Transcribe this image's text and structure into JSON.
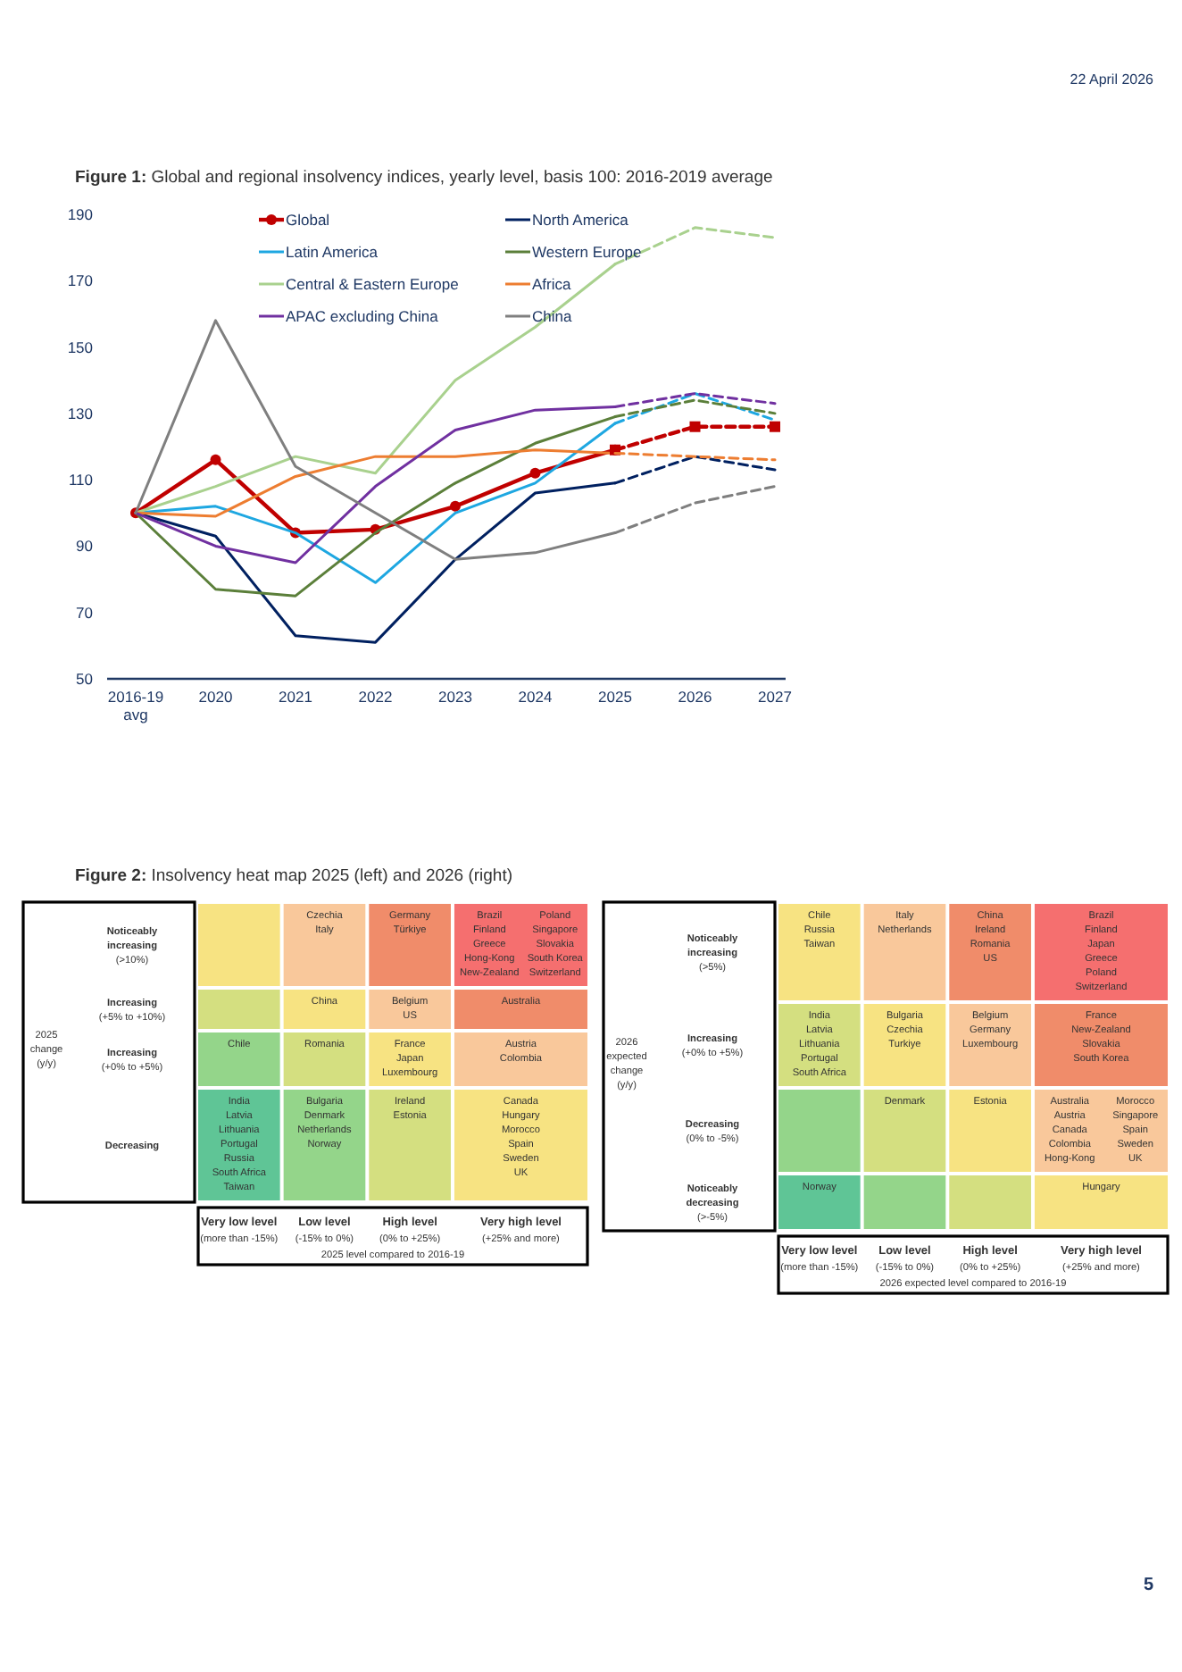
{
  "chart_data": [
    {
      "type": "line",
      "title": "Figure 1: Global and regional insolvency indices, yearly level, basis 100: 2016-2019 average",
      "annotations": [
        "22 April 2026",
        "5"
      ],
      "categories": [
        "2016-19 avg",
        "2020",
        "2021",
        "2022",
        "2023",
        "2024",
        "2025",
        "2026",
        "2027"
      ],
      "ylim": [
        50,
        190
      ],
      "yticks": [
        50,
        70,
        90,
        110,
        130,
        150,
        170,
        190
      ],
      "grid": false,
      "legend": "top",
      "line_style": "solid",
      "marker": "none",
      "series": [
        {
          "name": "Global",
          "color": "#c00000",
          "marker": "circle",
          "values": [
            100,
            116,
            94,
            95,
            102,
            112,
            119,
            null,
            null
          ]
        },
        {
          "name": "North America",
          "color": "#002060",
          "values": [
            100,
            93,
            63,
            61,
            86,
            106,
            109,
            null,
            null
          ]
        },
        {
          "name": "Latin America",
          "color": "#1ea7e1",
          "values": [
            100,
            102,
            94,
            79,
            100,
            109,
            127,
            null,
            null
          ]
        },
        {
          "name": "Western Europe",
          "color": "#5b7f3a",
          "values": [
            100,
            77,
            75,
            94,
            109,
            121,
            129,
            null,
            null
          ]
        },
        {
          "name": "Central & Eastern Europe",
          "color": "#a9d18e",
          "values": [
            100,
            108,
            117,
            112,
            140,
            156,
            175,
            null,
            null
          ]
        },
        {
          "name": "Africa",
          "color": "#ed7d31",
          "values": [
            100,
            99,
            111,
            117,
            117,
            119,
            118,
            null,
            null
          ]
        },
        {
          "name": "APAC excluding China",
          "color": "#7030a0",
          "values": [
            100,
            90,
            85,
            108,
            125,
            131,
            132,
            null,
            null
          ]
        },
        {
          "name": "China",
          "color": "#7f7f7f",
          "values": [
            100,
            158,
            114,
            100,
            86,
            88,
            94,
            null,
            null
          ]
        },
        {
          "color": "#c00000",
          "marker": "square",
          "line_style": "dashed",
          "values": [
            null,
            null,
            null,
            null,
            null,
            null,
            119,
            126,
            126
          ]
        },
        {
          "color": "#002060",
          "line_style": "dashed",
          "values": [
            null,
            null,
            null,
            null,
            null,
            null,
            109,
            117,
            113
          ]
        },
        {
          "color": "#1ea7e1",
          "line_style": "dashed",
          "values": [
            null,
            null,
            null,
            null,
            null,
            null,
            127,
            136,
            128
          ]
        },
        {
          "color": "#5b7f3a",
          "line_style": "dashed",
          "values": [
            null,
            null,
            null,
            null,
            null,
            null,
            129,
            134,
            130
          ]
        },
        {
          "color": "#a9d18e",
          "line_style": "dashed",
          "values": [
            null,
            null,
            null,
            null,
            null,
            null,
            175,
            186,
            183
          ]
        },
        {
          "color": "#ed7d31",
          "line_style": "dashed",
          "values": [
            null,
            null,
            null,
            null,
            null,
            null,
            118,
            117,
            116
          ]
        },
        {
          "color": "#7030a0",
          "line_style": "dashed",
          "values": [
            null,
            null,
            null,
            null,
            null,
            null,
            132,
            136,
            133
          ]
        },
        {
          "color": "#7f7f7f",
          "line_style": "dashed",
          "values": [
            null,
            null,
            null,
            null,
            null,
            null,
            94,
            103,
            108
          ]
        }
      ]
    },
    {
      "type": "other",
      "title": "Figure 2: Insolvency heat map 2025 (left) and 2026 (right)",
      "ylabel": "2025 change (y/y)",
      "xlabel": "2025 level compared to 2016-19",
      "categories": [
        "Very low level (more than -15%)",
        "Low level (-15% to 0%)",
        "High level (0% to +25%)",
        "Very high level (+25% and more)"
      ],
      "y_categories": [
        "Noticeably increasing (>10%)",
        "Increasing (+5% to +10%)",
        "Increasing (+0% to +5%)",
        "Decreasing"
      ],
      "cell_labels": [
        [
          null,
          [
            "Czechia",
            "Italy"
          ],
          [
            "Germany",
            "Türkiye"
          ],
          [
            "Brazil",
            "Finland",
            "Greece",
            "Hong-Kong",
            "New-Zealand",
            "Poland",
            "Singapore",
            "Slovakia",
            "South Korea",
            "Switzerland"
          ]
        ],
        [
          null,
          [
            "China"
          ],
          [
            "Belgium",
            "US"
          ],
          [
            "Australia"
          ]
        ],
        [
          [
            "Chile"
          ],
          [
            "Romania"
          ],
          [
            "France",
            "Japan",
            "Luxembourg"
          ],
          [
            "Austria",
            "Colombia"
          ]
        ],
        [
          [
            "India",
            "Latvia",
            "Lithuania",
            "Portugal",
            "Russia",
            "South Africa",
            "Taiwan"
          ],
          [
            "Bulgaria",
            "Denmark",
            "Netherlands",
            "Norway"
          ],
          [
            "Ireland",
            "Estonia"
          ],
          [
            "Canada",
            "Hungary",
            "Morocco",
            "Spain",
            "Sweden",
            "UK"
          ]
        ]
      ],
      "colors": [
        [
          "#f7e382",
          "#f9c89b",
          "#f08c6a",
          "#f56f6f"
        ],
        [
          "#d4df80",
          "#f7e382",
          "#f9c89b",
          "#f08c6a"
        ],
        [
          "#94d58a",
          "#d4df80",
          "#f7e382",
          "#f9c89b"
        ],
        [
          "#5fc596",
          "#94d58a",
          "#d4df80",
          "#f7e382"
        ]
      ]
    },
    {
      "type": "other",
      "ylabel": "2026 expected change (y/y)",
      "xlabel": "2026 expected level compared to 2016-19",
      "categories": [
        "Very low level (more than -15%)",
        "Low level (-15% to 0%)",
        "High level (0% to +25%)",
        "Very high level (+25% and more)"
      ],
      "y_categories": [
        "Noticeably increasing (>5%)",
        "Increasing (+0% to +5%)",
        "Decreasing (0% to -5%)",
        "Noticeably decreasing (>-5%)"
      ],
      "cell_labels": [
        [
          [
            "Chile",
            "Russia",
            "Taiwan"
          ],
          [
            "Italy",
            "Netherlands"
          ],
          [
            "China",
            "Ireland",
            "Romania",
            "US"
          ],
          [
            "Brazil",
            "Finland",
            "Japan",
            "Greece",
            "Poland",
            "Switzerland"
          ]
        ],
        [
          [
            "India",
            "Latvia",
            "Lithuania",
            "Portugal",
            "South Africa"
          ],
          [
            "Bulgaria",
            "Czechia",
            "Turkiye"
          ],
          [
            "Belgium",
            "Germany",
            "Luxembourg"
          ],
          [
            "France",
            "New-Zealand",
            "Slovakia",
            "South Korea"
          ]
        ],
        [
          null,
          [
            "Denmark"
          ],
          [
            "Estonia"
          ],
          [
            "Australia",
            "Austria",
            "Canada",
            "Colombia",
            "Hong-Kong",
            "Morocco",
            "Singapore",
            "Spain",
            "Sweden",
            "UK"
          ]
        ],
        [
          [
            "Norway"
          ],
          null,
          null,
          [
            "Hungary"
          ]
        ]
      ],
      "colors": [
        [
          "#f7e382",
          "#f9c89b",
          "#f08c6a",
          "#f56f6f"
        ],
        [
          "#d4df80",
          "#f7e382",
          "#f9c89b",
          "#f08c6a"
        ],
        [
          "#94d58a",
          "#d4df80",
          "#f7e382",
          "#f9c89b"
        ],
        [
          "#5fc596",
          "#94d58a",
          "#d4df80",
          "#f7e382"
        ]
      ]
    }
  ]
}
